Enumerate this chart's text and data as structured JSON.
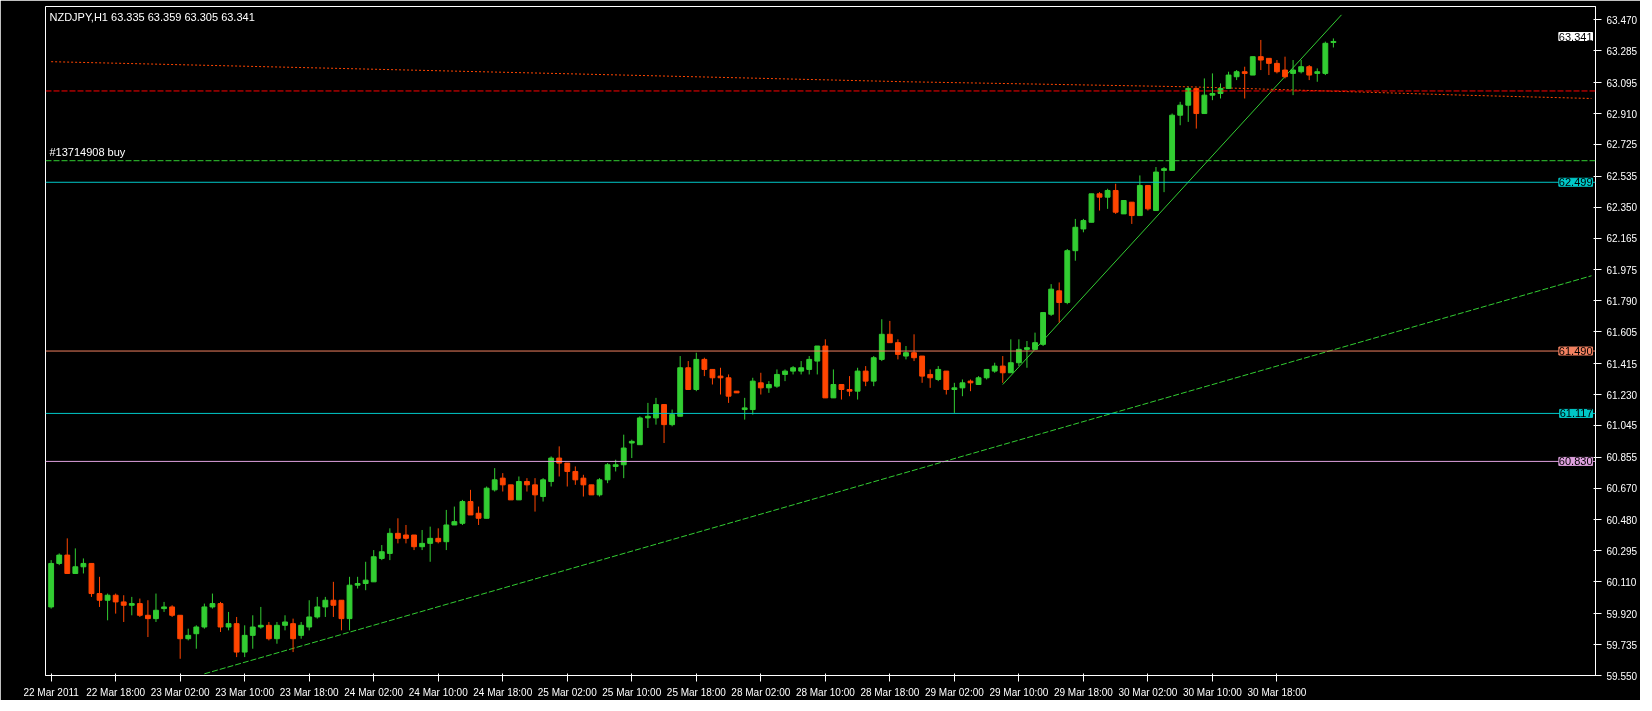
{
  "chart_data": {
    "type": "candlestick",
    "title": "NZDJPY,H1  63.335 63.359 63.305 63.341",
    "categories": [
      "22 Mar 2011",
      null,
      null,
      null,
      null,
      null,
      null,
      null,
      "22 Mar 18:00",
      null,
      null,
      null,
      null,
      null,
      null,
      null,
      "23 Mar 02:00",
      null,
      null,
      null,
      null,
      null,
      null,
      null,
      "23 Mar 10:00",
      null,
      null,
      null,
      null,
      null,
      null,
      null,
      "23 Mar 18:00",
      null,
      null,
      null,
      null,
      null,
      null,
      null,
      "24 Mar 02:00",
      null,
      null,
      null,
      null,
      null,
      null,
      null,
      "24 Mar 10:00",
      null,
      null,
      null,
      null,
      null,
      null,
      null,
      "24 Mar 18:00",
      null,
      null,
      null,
      null,
      null,
      null,
      null,
      "25 Mar 02:00",
      null,
      null,
      null,
      null,
      null,
      null,
      null,
      "25 Mar 10:00",
      null,
      null,
      null,
      null,
      null,
      null,
      null,
      "25 Mar 18:00",
      null,
      null,
      null,
      null,
      null,
      null,
      null,
      "28 Mar 02:00",
      null,
      null,
      null,
      null,
      null,
      null,
      null,
      "28 Mar 10:00",
      null,
      null,
      null,
      null,
      null,
      null,
      null,
      "28 Mar 18:00",
      null,
      null,
      null,
      null,
      null,
      null,
      null,
      "29 Mar 02:00",
      null,
      null,
      null,
      null,
      null,
      null,
      null,
      "29 Mar 10:00",
      null,
      null,
      null,
      null,
      null,
      null,
      null,
      "29 Mar 18:00",
      null,
      null,
      null,
      null,
      null,
      null,
      null,
      "30 Mar 02:00",
      null,
      null,
      null,
      null,
      null,
      null,
      null,
      "30 Mar 10:00",
      null,
      null,
      null,
      null,
      null,
      null,
      null,
      "30 Mar 18:00",
      null,
      null,
      null,
      null,
      null,
      null,
      null,
      null,
      null,
      null,
      null,
      null,
      null,
      null,
      null,
      null,
      null,
      null,
      null,
      null,
      null,
      null,
      null,
      null,
      null,
      null,
      null,
      null,
      null,
      null,
      null,
      null,
      null,
      null,
      null,
      null,
      null,
      null,
      null
    ],
    "ohlc": [
      [
        59.96,
        60.24,
        59.95,
        60.22
      ],
      [
        60.22,
        60.28,
        60.21,
        60.27
      ],
      [
        60.27,
        60.37,
        60.16,
        60.16
      ],
      [
        60.16,
        60.31,
        60.16,
        60.2
      ],
      [
        60.2,
        60.25,
        60.16,
        60.22
      ],
      [
        60.22,
        60.22,
        60.02,
        60.04
      ],
      [
        60.04,
        60.14,
        59.96,
        60.0
      ],
      [
        60.0,
        60.04,
        59.88,
        60.03
      ],
      [
        60.03,
        60.04,
        59.92,
        59.99
      ],
      [
        59.99,
        60.03,
        59.87,
        59.97
      ],
      [
        59.97,
        60.02,
        59.91,
        59.98
      ],
      [
        59.98,
        60.01,
        59.9,
        59.91
      ],
      [
        59.91,
        60.0,
        59.78,
        59.89
      ],
      [
        59.89,
        60.04,
        59.87,
        59.94
      ],
      [
        59.95,
        59.99,
        59.93,
        59.96
      ],
      [
        59.96,
        59.97,
        59.9,
        59.91
      ],
      [
        59.91,
        59.91,
        59.65,
        59.77
      ],
      [
        59.77,
        59.83,
        59.76,
        59.79
      ],
      [
        59.8,
        59.85,
        59.71,
        59.84
      ],
      [
        59.84,
        59.98,
        59.83,
        59.96
      ],
      [
        59.96,
        60.04,
        59.95,
        59.98
      ],
      [
        59.98,
        59.99,
        59.81,
        59.84
      ],
      [
        59.84,
        59.93,
        59.82,
        59.86
      ],
      [
        59.86,
        59.9,
        59.66,
        59.69
      ],
      [
        59.69,
        59.85,
        59.66,
        59.79
      ],
      [
        59.79,
        59.91,
        59.71,
        59.84
      ],
      [
        59.84,
        59.96,
        59.83,
        59.85
      ],
      [
        59.85,
        59.87,
        59.76,
        59.77
      ],
      [
        59.77,
        59.87,
        59.74,
        59.85
      ],
      [
        59.85,
        59.91,
        59.82,
        59.87
      ],
      [
        59.86,
        59.89,
        59.69,
        59.77
      ],
      [
        59.79,
        59.87,
        59.77,
        59.85
      ],
      [
        59.84,
        60.0,
        59.82,
        59.9
      ],
      [
        59.9,
        60.02,
        59.89,
        59.96
      ],
      [
        59.96,
        60.02,
        59.9,
        60.0
      ],
      [
        60.0,
        60.11,
        59.9,
        59.97
      ],
      [
        60.0,
        60.0,
        59.82,
        59.89
      ],
      [
        59.89,
        60.14,
        59.82,
        60.09
      ],
      [
        60.09,
        60.14,
        60.07,
        60.1
      ],
      [
        60.1,
        60.23,
        60.06,
        60.12
      ],
      [
        60.11,
        60.3,
        60.11,
        60.26
      ],
      [
        60.25,
        60.33,
        60.24,
        60.29
      ],
      [
        60.28,
        60.43,
        60.24,
        60.4
      ],
      [
        60.4,
        60.49,
        60.34,
        60.37
      ],
      [
        60.39,
        60.45,
        60.34,
        60.37
      ],
      [
        60.39,
        60.39,
        60.3,
        60.32
      ],
      [
        60.32,
        60.42,
        60.3,
        60.34
      ],
      [
        60.34,
        60.44,
        60.23,
        60.37
      ],
      [
        60.37,
        60.43,
        60.34,
        60.35
      ],
      [
        60.35,
        60.54,
        60.3,
        60.45
      ],
      [
        60.45,
        60.56,
        60.45,
        60.47
      ],
      [
        60.46,
        60.6,
        60.45,
        60.59
      ],
      [
        60.59,
        60.66,
        60.51,
        60.51
      ],
      [
        60.52,
        60.56,
        60.45,
        60.49
      ],
      [
        60.49,
        60.68,
        60.49,
        60.67
      ],
      [
        60.66,
        60.79,
        60.65,
        60.72
      ],
      [
        60.73,
        60.76,
        60.65,
        60.69
      ],
      [
        60.69,
        60.69,
        60.6,
        60.6
      ],
      [
        60.6,
        60.74,
        60.6,
        60.71
      ],
      [
        60.71,
        60.73,
        60.65,
        60.69
      ],
      [
        60.69,
        60.73,
        60.53,
        60.63
      ],
      [
        60.62,
        60.73,
        60.59,
        60.72
      ],
      [
        60.71,
        60.86,
        60.68,
        60.85
      ],
      [
        60.85,
        60.92,
        60.74,
        60.82
      ],
      [
        60.82,
        60.82,
        60.68,
        60.77
      ],
      [
        60.77,
        60.8,
        60.69,
        60.72
      ],
      [
        60.73,
        60.75,
        60.62,
        60.69
      ],
      [
        60.69,
        60.69,
        60.63,
        60.63
      ],
      [
        60.63,
        60.73,
        60.62,
        60.72
      ],
      [
        60.72,
        60.82,
        60.7,
        60.81
      ],
      [
        60.8,
        60.84,
        60.77,
        60.81
      ],
      [
        60.81,
        60.99,
        60.73,
        60.91
      ],
      [
        60.94,
        60.96,
        60.85,
        60.95
      ],
      [
        60.93,
        61.1,
        60.93,
        61.09
      ],
      [
        61.09,
        61.18,
        61.03,
        61.1
      ],
      [
        61.09,
        61.21,
        61.05,
        61.17
      ],
      [
        61.17,
        61.17,
        60.94,
        61.05
      ],
      [
        61.05,
        61.14,
        61.04,
        61.11
      ],
      [
        61.1,
        61.46,
        61.1,
        61.39
      ],
      [
        61.39,
        61.43,
        61.26,
        61.26
      ],
      [
        61.26,
        61.48,
        61.25,
        61.44
      ],
      [
        61.44,
        61.45,
        61.34,
        61.38
      ],
      [
        61.38,
        61.38,
        61.29,
        61.33
      ],
      [
        61.34,
        61.39,
        61.23,
        61.33
      ],
      [
        61.33,
        61.35,
        61.18,
        61.22
      ],
      [
        61.25,
        61.25,
        61.24,
        61.24
      ],
      [
        61.14,
        61.21,
        61.08,
        61.15
      ],
      [
        61.14,
        61.33,
        61.11,
        61.31
      ],
      [
        61.3,
        61.36,
        61.23,
        61.27
      ],
      [
        61.27,
        61.31,
        61.24,
        61.29
      ],
      [
        61.28,
        61.38,
        61.27,
        61.35
      ],
      [
        61.35,
        61.38,
        61.31,
        61.37
      ],
      [
        61.37,
        61.4,
        61.35,
        61.39
      ],
      [
        61.37,
        61.43,
        61.35,
        61.39
      ],
      [
        61.38,
        61.46,
        61.35,
        61.44
      ],
      [
        61.43,
        61.52,
        61.35,
        61.52
      ],
      [
        61.52,
        61.56,
        61.21,
        61.21
      ],
      [
        61.21,
        61.38,
        61.21,
        61.29
      ],
      [
        61.29,
        61.29,
        61.2,
        61.26
      ],
      [
        61.26,
        61.34,
        61.22,
        61.25
      ],
      [
        61.25,
        61.39,
        61.2,
        61.37
      ],
      [
        61.37,
        61.4,
        61.28,
        61.31
      ],
      [
        61.31,
        61.46,
        61.28,
        61.45
      ],
      [
        61.44,
        61.68,
        61.43,
        61.59
      ],
      [
        61.59,
        61.67,
        61.54,
        61.54
      ],
      [
        61.54,
        61.56,
        61.44,
        61.47
      ],
      [
        61.46,
        61.52,
        61.44,
        61.48
      ],
      [
        61.48,
        61.59,
        61.43,
        61.45
      ],
      [
        61.46,
        61.46,
        61.3,
        61.34
      ],
      [
        61.35,
        61.38,
        61.27,
        61.33
      ],
      [
        61.32,
        61.4,
        61.31,
        61.38
      ],
      [
        61.37,
        61.37,
        61.23,
        61.26
      ],
      [
        61.26,
        61.3,
        61.12,
        61.27
      ],
      [
        61.27,
        61.32,
        61.22,
        61.3
      ],
      [
        61.31,
        61.32,
        61.25,
        61.3
      ],
      [
        61.29,
        61.34,
        61.29,
        61.33
      ],
      [
        61.33,
        61.38,
        61.32,
        61.38
      ],
      [
        61.37,
        61.42,
        61.36,
        61.4
      ],
      [
        61.4,
        61.46,
        61.3,
        61.36
      ],
      [
        61.36,
        61.56,
        61.36,
        61.42
      ],
      [
        61.42,
        61.56,
        61.4,
        61.5
      ],
      [
        61.5,
        61.55,
        61.39,
        61.51
      ],
      [
        61.5,
        61.6,
        61.5,
        61.54
      ],
      [
        61.53,
        61.72,
        61.52,
        61.72
      ],
      [
        61.71,
        61.89,
        61.7,
        61.86
      ],
      [
        61.85,
        61.9,
        61.66,
        61.78
      ],
      [
        61.78,
        62.1,
        61.77,
        62.09
      ],
      [
        62.09,
        62.28,
        62.03,
        62.23
      ],
      [
        62.22,
        62.28,
        62.2,
        62.27
      ],
      [
        62.26,
        62.43,
        62.26,
        62.43
      ],
      [
        62.43,
        62.44,
        62.33,
        62.41
      ],
      [
        62.41,
        62.46,
        62.34,
        62.45
      ],
      [
        62.45,
        62.49,
        62.31,
        62.32
      ],
      [
        62.31,
        62.39,
        62.31,
        62.39
      ],
      [
        62.38,
        62.38,
        62.25,
        62.3
      ],
      [
        62.3,
        62.54,
        62.3,
        62.48
      ],
      [
        62.48,
        62.48,
        62.33,
        62.34
      ],
      [
        62.33,
        62.59,
        62.33,
        62.56
      ],
      [
        62.57,
        62.59,
        62.44,
        62.58
      ],
      [
        62.57,
        62.91,
        62.57,
        62.9
      ],
      [
        62.9,
        62.98,
        62.84,
        62.96
      ],
      [
        62.96,
        63.07,
        62.86,
        63.06
      ],
      [
        63.06,
        63.06,
        62.82,
        62.91
      ],
      [
        62.91,
        63.12,
        62.91,
        63.02
      ],
      [
        63.02,
        63.15,
        62.99,
        63.03
      ],
      [
        63.03,
        63.09,
        63.0,
        63.06
      ],
      [
        63.06,
        63.16,
        63.06,
        63.14
      ],
      [
        63.13,
        63.17,
        63.11,
        63.16
      ],
      [
        63.16,
        63.19,
        63.0,
        63.15
      ],
      [
        63.14,
        63.25,
        63.14,
        63.25
      ],
      [
        63.25,
        63.35,
        63.17,
        63.23
      ],
      [
        63.24,
        63.24,
        63.14,
        63.21
      ],
      [
        63.21,
        63.23,
        63.15,
        63.16
      ],
      [
        63.17,
        63.25,
        63.12,
        63.13
      ],
      [
        63.15,
        63.23,
        63.02,
        63.17
      ],
      [
        63.16,
        63.23,
        63.15,
        63.19
      ],
      [
        63.19,
        63.2,
        63.11,
        63.14
      ],
      [
        63.15,
        63.18,
        63.1,
        63.16
      ],
      [
        63.15,
        63.34,
        63.14,
        63.33
      ],
      [
        63.335,
        63.359,
        63.305,
        63.341
      ],
      null,
      null,
      null,
      null,
      null,
      null,
      null,
      null,
      null,
      null,
      null,
      null,
      null,
      null,
      null,
      null,
      null,
      null,
      null,
      null,
      null,
      null,
      null,
      null,
      null,
      null,
      null,
      null,
      null,
      null,
      null,
      null
    ],
    "series": [
      {
        "type": "line",
        "color": "#ff4500",
        "line_style": "dotted",
        "values": [
          63.22,
          null,
          null,
          null,
          null,
          null,
          null,
          null,
          null,
          null,
          null,
          null,
          null,
          null,
          null,
          null,
          null,
          null,
          null,
          null,
          null,
          null,
          null,
          null,
          null,
          null,
          null,
          null,
          null,
          null,
          null,
          null,
          null,
          null,
          null,
          null,
          null,
          null,
          null,
          null,
          null,
          null,
          null,
          null,
          null,
          null,
          null,
          null,
          null,
          null,
          null,
          null,
          null,
          null,
          null,
          null,
          null,
          null,
          null,
          null,
          null,
          null,
          null,
          null,
          null,
          null,
          null,
          null,
          null,
          null,
          null,
          63.14,
          null,
          null,
          null,
          null,
          null,
          null,
          null,
          null,
          null,
          null,
          null,
          null,
          null,
          null,
          null,
          null,
          null,
          null,
          null,
          null,
          null,
          null,
          null,
          null,
          null,
          null,
          null,
          null,
          null,
          null,
          null,
          null,
          null,
          null,
          63.1,
          null,
          null,
          null,
          null,
          null,
          null,
          null,
          null,
          null,
          null,
          null,
          null,
          null,
          null,
          null,
          null,
          null,
          null,
          null,
          null,
          null,
          null,
          null,
          null,
          null,
          null,
          null,
          null,
          null,
          null,
          null,
          null,
          null,
          null,
          63.07,
          null,
          null,
          null,
          null,
          null,
          null,
          null,
          null,
          null,
          null,
          null,
          null,
          null,
          null,
          null,
          null,
          null,
          null,
          null,
          null,
          null,
          null,
          null,
          null,
          null,
          null,
          null,
          null,
          null,
          null,
          null,
          null,
          null,
          63.02,
          null,
          null,
          null,
          null,
          null,
          null,
          null,
          null,
          null,
          null,
          null,
          null,
          null,
          null,
          null,
          63.0
        ]
      },
      {
        "type": "line",
        "color": "#32cd32",
        "line_style": "dashed",
        "values": [
          null,
          null,
          null,
          null,
          null,
          null,
          null,
          null,
          null,
          null,
          null,
          null,
          null,
          null,
          null,
          null,
          null,
          null,
          null,
          59.56,
          null,
          null,
          null,
          null,
          null,
          null,
          null,
          null,
          null,
          null,
          null,
          null,
          null,
          null,
          null,
          null,
          null,
          null,
          null,
          null,
          null,
          null,
          null,
          null,
          null,
          null,
          null,
          null,
          null,
          null,
          null,
          null,
          null,
          null,
          null,
          null,
          null,
          null,
          null,
          null,
          null,
          null,
          null,
          null,
          null,
          null,
          null,
          null,
          null,
          null,
          null,
          null,
          null,
          null,
          null,
          null,
          null,
          null,
          null,
          null,
          null,
          null,
          null,
          null,
          null,
          null,
          null,
          null,
          null,
          null,
          null,
          null,
          null,
          null,
          null,
          null,
          null,
          null,
          null,
          null,
          null,
          null,
          null,
          null,
          null,
          null,
          null,
          null,
          null,
          null,
          null,
          null,
          null,
          null,
          null,
          null,
          null,
          null,
          null,
          null,
          null,
          null,
          null,
          null,
          null,
          null,
          null,
          null,
          null,
          null,
          null,
          null,
          null,
          null,
          null,
          null,
          null,
          null,
          null,
          null,
          null,
          null,
          null,
          null,
          null,
          null,
          null,
          null,
          null,
          null,
          null,
          null,
          null,
          null,
          null,
          null,
          null,
          null,
          null,
          null,
          null,
          null,
          null,
          null,
          null,
          null,
          null,
          null,
          null,
          null,
          null,
          null,
          null,
          null,
          null,
          null,
          null,
          null,
          null,
          null,
          null,
          null,
          null,
          null,
          null,
          null,
          null,
          null,
          null,
          null,
          null,
          61.94
        ]
      },
      {
        "type": "line",
        "color": "#32cd32",
        "line_style": "solid",
        "values": [
          null,
          null,
          null,
          null,
          null,
          null,
          null,
          null,
          null,
          null,
          null,
          null,
          null,
          null,
          null,
          null,
          null,
          null,
          null,
          null,
          null,
          null,
          null,
          null,
          null,
          null,
          null,
          null,
          null,
          null,
          null,
          null,
          null,
          null,
          null,
          null,
          null,
          null,
          null,
          null,
          null,
          null,
          null,
          null,
          null,
          null,
          null,
          null,
          null,
          null,
          null,
          null,
          null,
          null,
          null,
          null,
          null,
          null,
          null,
          null,
          null,
          null,
          null,
          null,
          null,
          null,
          null,
          null,
          null,
          null,
          null,
          null,
          null,
          null,
          null,
          null,
          null,
          null,
          null,
          null,
          null,
          null,
          null,
          null,
          null,
          null,
          null,
          null,
          null,
          null,
          null,
          null,
          null,
          null,
          null,
          null,
          null,
          null,
          null,
          null,
          null,
          null,
          null,
          null,
          null,
          null,
          null,
          null,
          null,
          null,
          null,
          null,
          null,
          null,
          null,
          null,
          null,
          null,
          61.29,
          null,
          null,
          null,
          null,
          null,
          null,
          null,
          null,
          null,
          null,
          null,
          null,
          null,
          null,
          null,
          null,
          null,
          null,
          null,
          null,
          null,
          null,
          null,
          null,
          null,
          null,
          null,
          null,
          null,
          null,
          null,
          null,
          null,
          null,
          null,
          null,
          null,
          null,
          null,
          null,
          null,
          63.5,
          null,
          null,
          null,
          null,
          null,
          null,
          null,
          null,
          null,
          null,
          null,
          null,
          null,
          null,
          null,
          null,
          null,
          null,
          null,
          null,
          null,
          null,
          null,
          null,
          null,
          null,
          null,
          null,
          null,
          null,
          null
        ]
      }
    ],
    "ref_lines": [
      {
        "axis": "y",
        "value": 63.045,
        "color": "#ff0000",
        "line_style": "dashed"
      },
      {
        "axis": "y",
        "value": 62.628,
        "label": "#13714908 buy",
        "color": "#32cd32",
        "line_style": "dashed"
      },
      {
        "axis": "y",
        "value": 62.499,
        "label": "62.499",
        "color": "#00c8c8",
        "line_style": "solid"
      },
      {
        "axis": "y",
        "value": 61.49,
        "label": "61.490",
        "color": "#f08060",
        "line_style": "solid"
      },
      {
        "axis": "y",
        "value": 61.117,
        "label": "61.117",
        "color": "#00c8c8",
        "line_style": "solid"
      },
      {
        "axis": "y",
        "value": 60.83,
        "label": "60.830",
        "color": "#dda0dd",
        "line_style": "solid"
      }
    ],
    "annotations": [
      "63.341"
    ],
    "ylim": [
      59.55,
      63.55
    ],
    "yticks": [
      {
        "value": 63.47,
        "label": "63.470"
      },
      {
        "value": 63.285,
        "label": "63.285"
      },
      {
        "value": 63.095,
        "label": "63.095"
      },
      {
        "value": 62.91,
        "label": "62.910"
      },
      {
        "value": 62.725,
        "label": "62.725"
      },
      {
        "value": 62.535,
        "label": "62.535"
      },
      {
        "value": 62.35,
        "label": "62.350"
      },
      {
        "value": 62.165,
        "label": "62.165"
      },
      {
        "value": 61.975,
        "label": "61.975"
      },
      {
        "value": 61.79,
        "label": "61.790"
      },
      {
        "value": 61.605,
        "label": "61.605"
      },
      {
        "value": 61.415,
        "label": "61.415"
      },
      {
        "value": 61.23,
        "label": "61.230"
      },
      {
        "value": 61.045,
        "label": "61.045"
      },
      {
        "value": 60.855,
        "label": "60.855"
      },
      {
        "value": 60.67,
        "label": "60.670"
      },
      {
        "value": 60.48,
        "label": "60.480"
      },
      {
        "value": 60.295,
        "label": "60.295"
      },
      {
        "value": 60.11,
        "label": "60.110"
      },
      {
        "value": 59.92,
        "label": "59.920"
      },
      {
        "value": 59.735,
        "label": "59.735"
      },
      {
        "value": 59.55,
        "label": "59.550"
      }
    ],
    "grid": false
  }
}
